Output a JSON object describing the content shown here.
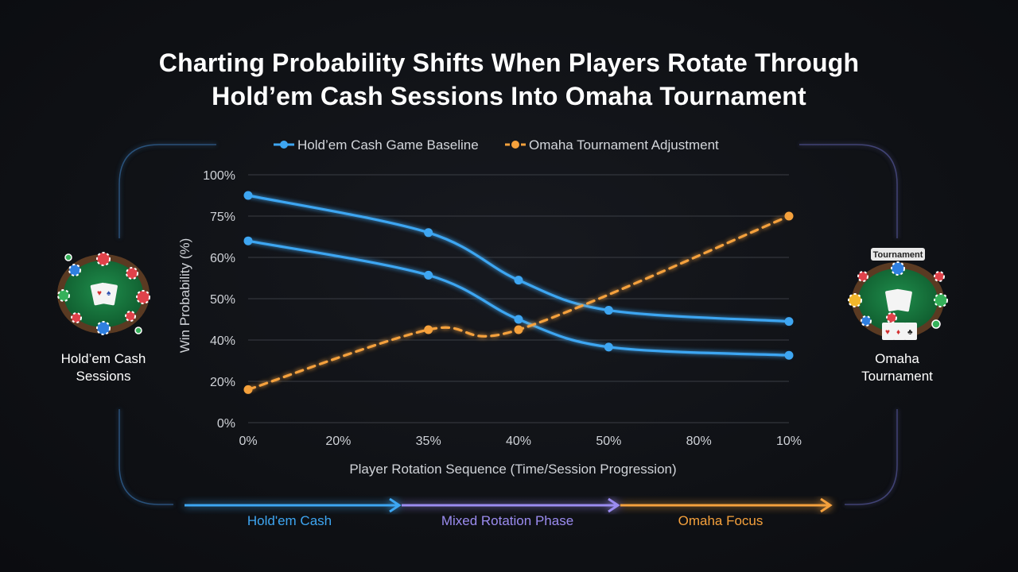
{
  "title_lines": [
    "Charting Probability Shifts When Players Rotate Through",
    "Hold’em Cash Sessions Into Omaha Tournament"
  ],
  "left_panel": {
    "label_lines": [
      "Hold’em Cash",
      "Sessions"
    ],
    "icon": "poker-table-icon"
  },
  "right_panel": {
    "badge": "Tournament",
    "label_lines": [
      "Omaha",
      "Tournament"
    ],
    "icon": "tournament-table-icon"
  },
  "phases": [
    {
      "label": "Hold'em Cash",
      "color": "#3ea6f2"
    },
    {
      "label": "Mixed Rotation Phase",
      "color": "#9b8cf0"
    },
    {
      "label": "Omaha Focus",
      "color": "#f5a13c"
    }
  ],
  "chart_data": {
    "type": "line",
    "title": "",
    "xlabel": "Player Rotation Sequence (Time/Session Progression)",
    "ylabel": "Win Probability (%)",
    "x_tick_labels": [
      "0%",
      "20%",
      "35%",
      "40%",
      "50%",
      "80%",
      "10%"
    ],
    "y_tick_labels": [
      "0%",
      "20%",
      "40%",
      "50%",
      "60%",
      "75%",
      "100%"
    ],
    "ylim": [
      0,
      6
    ],
    "legend_position": "top",
    "grid": true,
    "series": [
      {
        "name": "Hold’em Cash Game Baseline",
        "color": "#3ea6f2",
        "style": "solid",
        "points": [
          [
            0,
            5.5
          ],
          [
            2,
            4.6
          ],
          [
            3,
            3.45
          ],
          [
            4,
            2.72
          ],
          [
            6,
            2.45
          ]
        ]
      },
      {
        "name": "",
        "color": "#3ea6f2",
        "style": "solid",
        "points": [
          [
            0,
            4.4
          ],
          [
            2,
            3.57
          ],
          [
            3,
            2.5
          ],
          [
            4,
            1.83
          ],
          [
            6,
            1.63
          ]
        ]
      },
      {
        "name": "Omaha Tournament Adjustment",
        "color": "#f5a13c",
        "style": "dashed",
        "points": [
          [
            0,
            0.8
          ],
          [
            2,
            2.25
          ],
          [
            3,
            2.25
          ],
          [
            6,
            5.0
          ]
        ]
      }
    ]
  }
}
